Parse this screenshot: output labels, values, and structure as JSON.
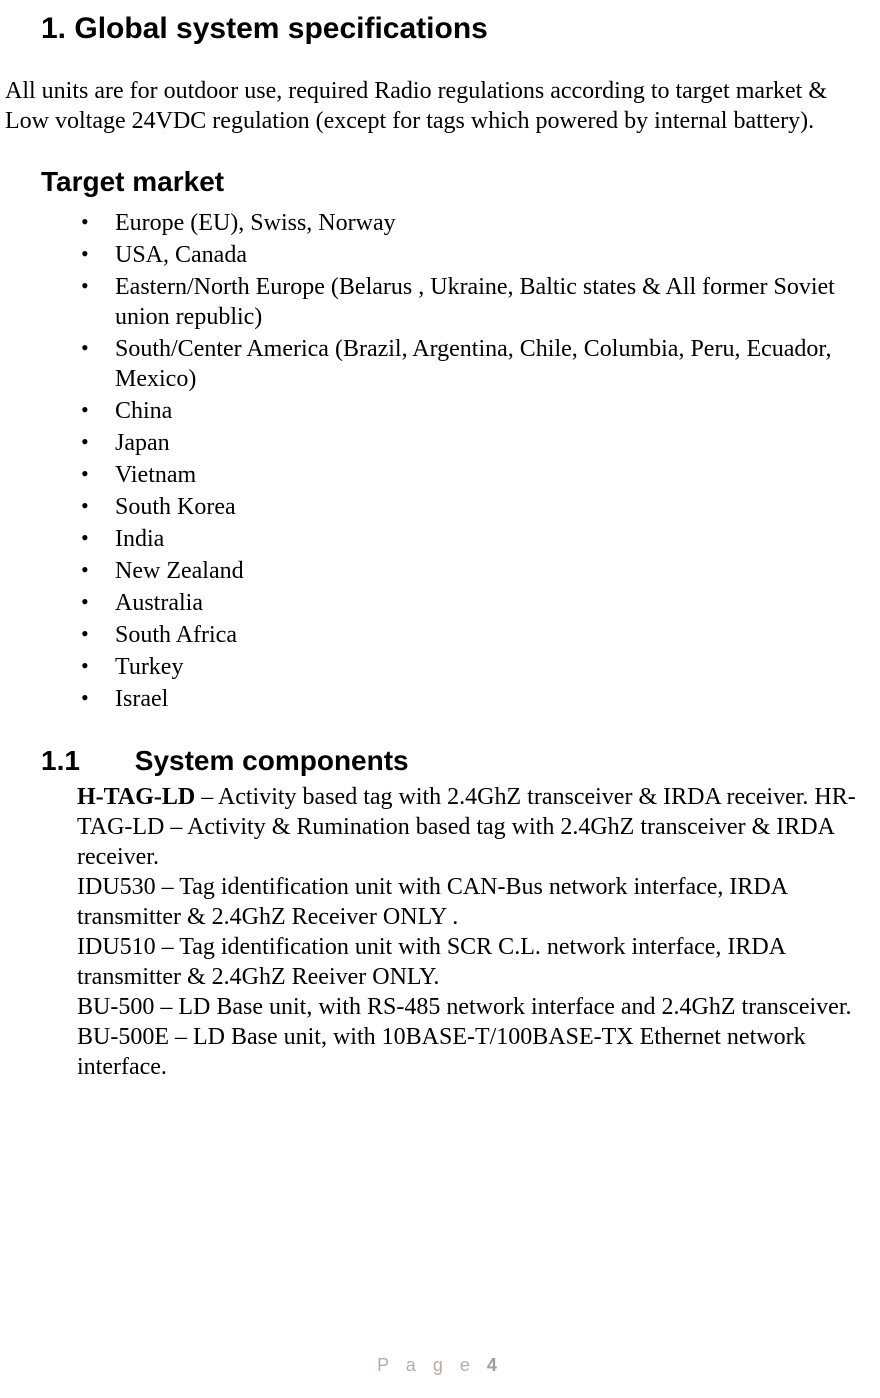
{
  "section_heading": "1. Global system specifications",
  "intro_paragraph": "All units are for outdoor use, required Radio regulations according to target market & Low voltage 24VDC regulation (except for tags which powered by internal battery).",
  "target_market_heading": "Target market",
  "target_markets": [
    "Europe (EU), Swiss, Norway",
    "USA, Canada",
    "Eastern/North Europe (Belarus , Ukraine, Baltic states  & All former Soviet union republic)",
    "South/Center America (Brazil, Argentina, Chile, Columbia, Peru, Ecuador, Mexico)",
    "China",
    "Japan",
    "Vietnam",
    "South Korea",
    "India",
    "New Zealand",
    "Australia",
    "South Africa",
    "Turkey",
    "Israel"
  ],
  "system_components_num": "1.1",
  "system_components_heading": "System components",
  "components_bold_lead": "H-TAG-LD",
  "components_body": " – Activity based tag with 2.4GhZ transceiver & IRDA receiver. HR-TAG-LD – Activity & Rumination based tag with 2.4GhZ  transceiver & IRDA receiver.\nIDU530  – Tag identification unit with CAN-Bus network interface, IRDA transmitter & 2.4GhZ  Receiver ONLY .\nIDU510 – Tag identification unit with SCR C.L. network interface, IRDA transmitter & 2.4GhZ   Reeiver ONLY.\nBU-500 – LD Base unit, with RS-485 network interface and 2.4GhZ transceiver. BU-500E – LD Base unit, with 10BASE-T/100BASE-TX Ethernet network interface.",
  "footer_label": "P a g e ",
  "footer_page_number": "4",
  "colors": {
    "text": "#000000",
    "background": "#ffffff",
    "footer": "#b6adad",
    "footer_num": "#a59a9a"
  },
  "typography": {
    "body_font": "Times New Roman",
    "heading_font": "Arial",
    "body_size_pt": 18,
    "h1_size_pt": 22,
    "h2_size_pt": 21,
    "footer_size_pt": 13
  }
}
